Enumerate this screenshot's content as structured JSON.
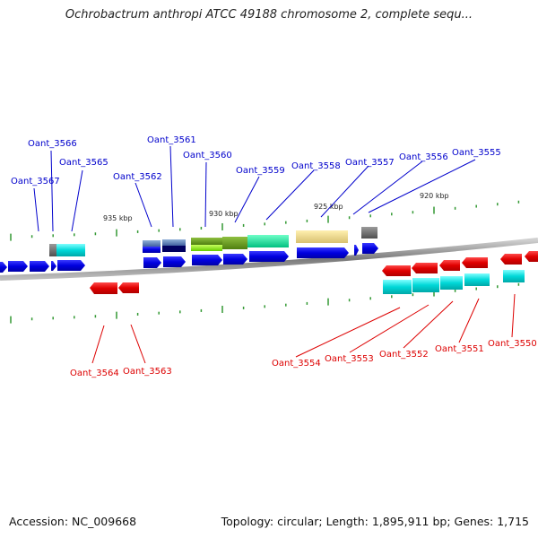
{
  "title": "Ochrobactrum anthropi ATCC 49188 chromosome 2, complete sequ...",
  "footer": {
    "accession": "Accession: NC_009668",
    "summary": "Topology: circular; Length: 1,895,911 bp; Genes: 1,715"
  },
  "colors": {
    "forward_label": "#0000cc",
    "reverse_label": "#dd0000",
    "forward_gene": "#0000ee",
    "reverse_gene": "#ee0000",
    "cds": "#00cccc",
    "tick": "#339933",
    "backbone": "#888888"
  },
  "scale_labels": [
    {
      "text": "935 kbp"
    },
    {
      "text": "930 kbp"
    },
    {
      "text": "925 kbp"
    },
    {
      "text": "920 kbp"
    }
  ],
  "forward_genes": [
    {
      "label": "Oant_3567"
    },
    {
      "label": "Oant_3566"
    },
    {
      "label": "Oant_3565"
    },
    {
      "label": "Oant_3562"
    },
    {
      "label": "Oant_3561"
    },
    {
      "label": "Oant_3560"
    },
    {
      "label": "Oant_3559"
    },
    {
      "label": "Oant_3558"
    },
    {
      "label": "Oant_3557"
    },
    {
      "label": "Oant_3556"
    },
    {
      "label": "Oant_3555"
    }
  ],
  "reverse_genes": [
    {
      "label": "Oant_3564"
    },
    {
      "label": "Oant_3563"
    },
    {
      "label": "Oant_3554"
    },
    {
      "label": "Oant_3553"
    },
    {
      "label": "Oant_3552"
    },
    {
      "label": "Oant_3551"
    },
    {
      "label": "Oant_3550"
    }
  ]
}
